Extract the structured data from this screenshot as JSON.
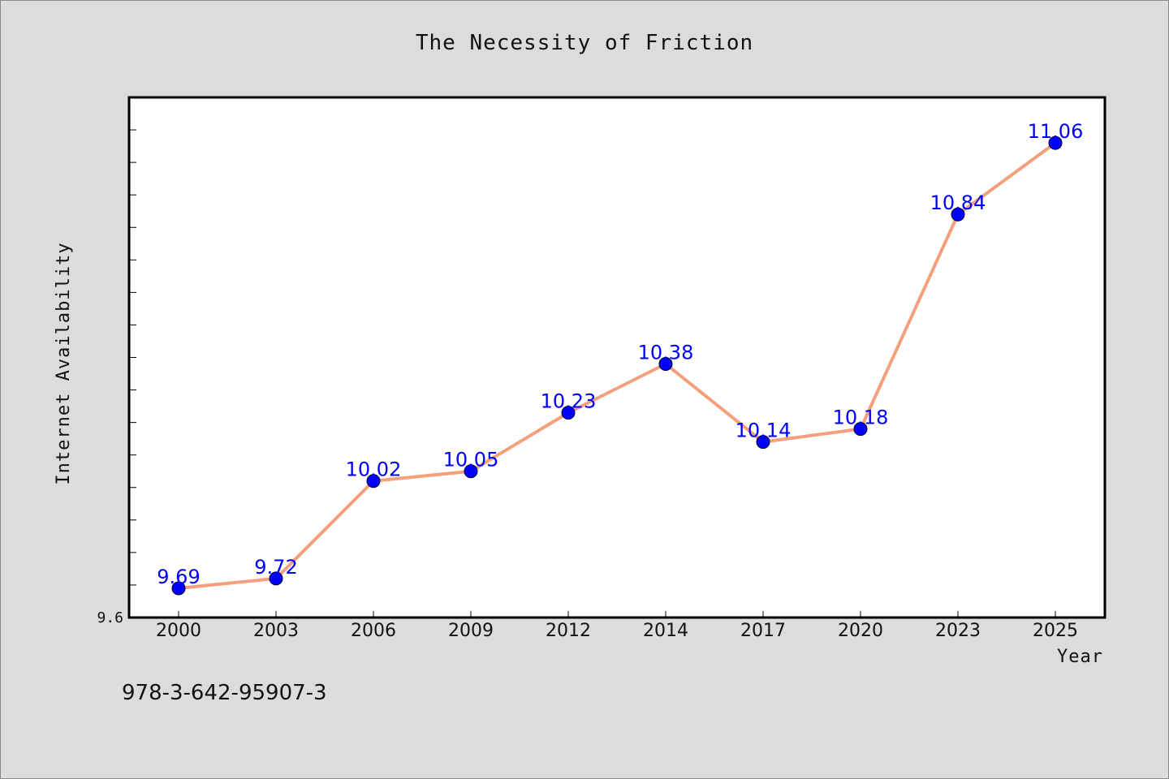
{
  "chart_data": {
    "type": "line",
    "title": "The Necessity of Friction",
    "xlabel": "Year",
    "ylabel": "Internet Availability",
    "categories": [
      "2000",
      "2003",
      "2006",
      "2009",
      "2012",
      "2014",
      "2017",
      "2020",
      "2023",
      "2025"
    ],
    "series": [
      {
        "values": [
          9.69,
          9.72,
          10.02,
          10.05,
          10.23,
          10.38,
          10.14,
          10.18,
          10.84,
          11.06
        ],
        "data_labels": [
          "9.69",
          "9.72",
          "10.02",
          "10.05",
          "10.23",
          "10.38",
          "10.14",
          "10.18",
          "10.84",
          "11.06"
        ],
        "line_color": "#f4a07c",
        "marker_color": "#0000ff"
      }
    ],
    "ylim": [
      9.6,
      11.2
    ],
    "y_tick_label_shown": "9.6",
    "grid": false,
    "legend": "none",
    "background_color": "#dcdcdc",
    "plot_background_color": "#ffffff"
  },
  "footer": {
    "isbn": "978-3-642-95907-3"
  }
}
